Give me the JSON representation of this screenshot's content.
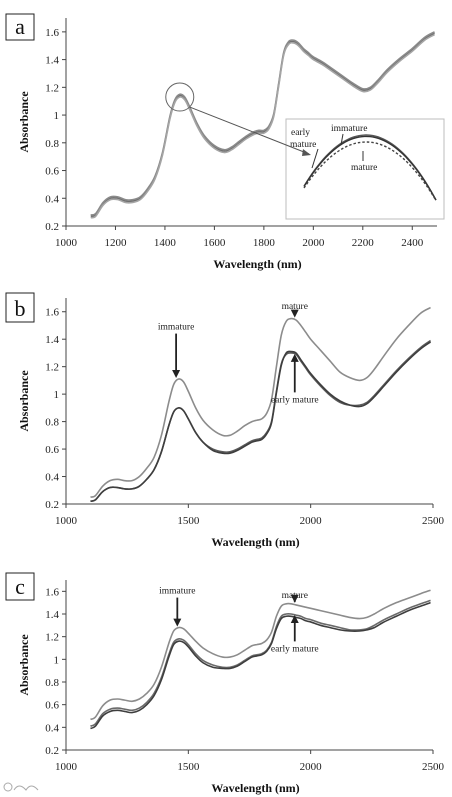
{
  "chart_data": [
    {
      "type": "line",
      "panel_label": "a",
      "xlabel": "Wavelength (nm)",
      "ylabel": "Absorbance",
      "xlim": [
        1000,
        2500
      ],
      "ylim": [
        0.2,
        1.7
      ],
      "xticks": [
        1000,
        1200,
        1400,
        1600,
        1800,
        2000,
        2200,
        2400
      ],
      "yticks": [
        0.2,
        0.4,
        0.6,
        0.8,
        1.0,
        1.2,
        1.4,
        1.6
      ],
      "ytick_labels": [
        "0.2",
        "0.4",
        "0.6",
        "0.8",
        "1",
        "1.2",
        "1.4",
        "1.6"
      ],
      "grid": false,
      "series": [
        {
          "color": "#6f6f6f",
          "x": [
            1100,
            1120,
            1150,
            1180,
            1210,
            1240,
            1270,
            1300,
            1330,
            1360,
            1390,
            1420,
            1440,
            1460,
            1480,
            1500,
            1530,
            1560,
            1600,
            1640,
            1670,
            1700,
            1730,
            1760,
            1780,
            1800,
            1820,
            1840,
            1860,
            1880,
            1900,
            1920,
            1940,
            1960,
            1980,
            2000,
            2040,
            2080,
            2120,
            2160,
            2200,
            2230,
            2260,
            2300,
            2350,
            2400,
            2450,
            2490
          ],
          "y": [
            0.27,
            0.28,
            0.36,
            0.4,
            0.4,
            0.38,
            0.38,
            0.4,
            0.46,
            0.55,
            0.72,
            0.98,
            1.1,
            1.14,
            1.12,
            1.05,
            0.93,
            0.84,
            0.77,
            0.74,
            0.76,
            0.8,
            0.84,
            0.87,
            0.88,
            0.88,
            0.91,
            1.0,
            1.22,
            1.44,
            1.52,
            1.53,
            1.51,
            1.47,
            1.44,
            1.41,
            1.37,
            1.32,
            1.27,
            1.22,
            1.18,
            1.19,
            1.24,
            1.32,
            1.4,
            1.47,
            1.55,
            1.59
          ]
        },
        {
          "color": "#8a8a8a",
          "x": [
            1100,
            1120,
            1150,
            1180,
            1210,
            1240,
            1270,
            1300,
            1330,
            1360,
            1390,
            1420,
            1440,
            1460,
            1480,
            1500,
            1530,
            1560,
            1600,
            1640,
            1670,
            1700,
            1730,
            1760,
            1780,
            1800,
            1820,
            1840,
            1860,
            1880,
            1900,
            1920,
            1940,
            1960,
            1980,
            2000,
            2040,
            2080,
            2120,
            2160,
            2200,
            2230,
            2260,
            2300,
            2350,
            2400,
            2450,
            2490
          ],
          "y": [
            0.28,
            0.29,
            0.37,
            0.41,
            0.41,
            0.39,
            0.39,
            0.41,
            0.47,
            0.56,
            0.73,
            0.99,
            1.11,
            1.15,
            1.13,
            1.06,
            0.94,
            0.85,
            0.78,
            0.75,
            0.77,
            0.81,
            0.85,
            0.88,
            0.89,
            0.89,
            0.92,
            1.01,
            1.23,
            1.45,
            1.53,
            1.54,
            1.52,
            1.48,
            1.45,
            1.42,
            1.38,
            1.33,
            1.28,
            1.23,
            1.19,
            1.2,
            1.25,
            1.33,
            1.41,
            1.48,
            1.56,
            1.6
          ]
        },
        {
          "color": "#a5a5a5",
          "x": [
            1100,
            1120,
            1150,
            1180,
            1210,
            1240,
            1270,
            1300,
            1330,
            1360,
            1390,
            1420,
            1440,
            1460,
            1480,
            1500,
            1530,
            1560,
            1600,
            1640,
            1670,
            1700,
            1730,
            1760,
            1780,
            1800,
            1820,
            1840,
            1860,
            1880,
            1900,
            1920,
            1940,
            1960,
            1980,
            2000,
            2040,
            2080,
            2120,
            2160,
            2200,
            2230,
            2260,
            2300,
            2350,
            2400,
            2450,
            2490
          ],
          "y": [
            0.26,
            0.27,
            0.35,
            0.39,
            0.39,
            0.37,
            0.37,
            0.39,
            0.45,
            0.54,
            0.71,
            0.97,
            1.09,
            1.13,
            1.11,
            1.04,
            0.92,
            0.83,
            0.76,
            0.73,
            0.75,
            0.79,
            0.83,
            0.86,
            0.87,
            0.87,
            0.9,
            0.99,
            1.21,
            1.43,
            1.51,
            1.52,
            1.5,
            1.46,
            1.43,
            1.4,
            1.36,
            1.31,
            1.26,
            1.21,
            1.17,
            1.18,
            1.23,
            1.31,
            1.39,
            1.46,
            1.54,
            1.58
          ]
        }
      ],
      "inset": {
        "labels": [
          "early mature",
          "immature",
          "mature"
        ],
        "curves": [
          {
            "label": "immature",
            "style": "solid",
            "peak": 1.0
          },
          {
            "label": "early mature",
            "style": "solid",
            "peak": 0.98
          },
          {
            "label": "mature",
            "style": "dotted",
            "peak": 0.9
          }
        ],
        "zoom_center": {
          "x": 1460,
          "y": 1.13
        }
      }
    },
    {
      "type": "line",
      "panel_label": "b",
      "xlabel": "Wavelength (nm)",
      "ylabel": "Absorbance",
      "xlim": [
        1000,
        2500
      ],
      "ylim": [
        0.2,
        1.7
      ],
      "xticks": [
        1000,
        1500,
        2000,
        2500
      ],
      "yticks": [
        0.2,
        0.4,
        0.6,
        0.8,
        1.0,
        1.2,
        1.4,
        1.6
      ],
      "ytick_labels": [
        "0.2",
        "0.4",
        "0.6",
        "0.8",
        "1",
        "1.2",
        "1.4",
        "1.6"
      ],
      "grid": false,
      "annotations": [
        {
          "text": "immature",
          "x": 1450,
          "y": 1.11,
          "label_y": 1.47
        },
        {
          "text": "mature",
          "x": 1935,
          "y": 1.55,
          "label_y": 1.62
        },
        {
          "text": "early mature",
          "x": 1935,
          "y": 1.3,
          "label_y": 0.94
        }
      ],
      "series": [
        {
          "color": "#8c8c8c",
          "x": [
            1100,
            1120,
            1150,
            1180,
            1210,
            1240,
            1270,
            1300,
            1330,
            1360,
            1390,
            1420,
            1440,
            1460,
            1480,
            1500,
            1530,
            1560,
            1600,
            1640,
            1670,
            1700,
            1730,
            1760,
            1780,
            1800,
            1820,
            1840,
            1860,
            1880,
            1900,
            1920,
            1940,
            1960,
            1980,
            2000,
            2040,
            2080,
            2120,
            2160,
            2200,
            2230,
            2260,
            2300,
            2350,
            2400,
            2450,
            2490
          ],
          "y": [
            0.25,
            0.26,
            0.33,
            0.37,
            0.38,
            0.37,
            0.37,
            0.4,
            0.46,
            0.54,
            0.7,
            0.94,
            1.07,
            1.11,
            1.09,
            1.02,
            0.9,
            0.81,
            0.74,
            0.7,
            0.7,
            0.73,
            0.77,
            0.8,
            0.81,
            0.82,
            0.86,
            0.96,
            1.2,
            1.43,
            1.53,
            1.55,
            1.54,
            1.5,
            1.45,
            1.4,
            1.32,
            1.24,
            1.16,
            1.12,
            1.1,
            1.12,
            1.18,
            1.28,
            1.4,
            1.5,
            1.59,
            1.63
          ]
        },
        {
          "color": "#5a5a5a",
          "x": [
            1100,
            1120,
            1150,
            1180,
            1210,
            1240,
            1270,
            1300,
            1330,
            1360,
            1390,
            1420,
            1440,
            1460,
            1480,
            1500,
            1530,
            1560,
            1600,
            1640,
            1670,
            1700,
            1730,
            1760,
            1780,
            1800,
            1820,
            1840,
            1860,
            1880,
            1900,
            1920,
            1940,
            1960,
            1980,
            2000,
            2040,
            2080,
            2120,
            2160,
            2200,
            2230,
            2260,
            2300,
            2350,
            2400,
            2450,
            2490
          ],
          "y": [
            0.22,
            0.23,
            0.29,
            0.32,
            0.32,
            0.31,
            0.31,
            0.33,
            0.38,
            0.45,
            0.58,
            0.77,
            0.87,
            0.9,
            0.88,
            0.82,
            0.72,
            0.65,
            0.6,
            0.58,
            0.58,
            0.6,
            0.63,
            0.66,
            0.67,
            0.68,
            0.72,
            0.8,
            1.02,
            1.22,
            1.29,
            1.3,
            1.29,
            1.24,
            1.19,
            1.14,
            1.06,
            0.99,
            0.94,
            0.92,
            0.92,
            0.94,
            0.99,
            1.07,
            1.17,
            1.26,
            1.34,
            1.39
          ]
        },
        {
          "color": "#3e3e3e",
          "x": [
            1100,
            1120,
            1150,
            1180,
            1210,
            1240,
            1270,
            1300,
            1330,
            1360,
            1390,
            1420,
            1440,
            1460,
            1480,
            1500,
            1530,
            1560,
            1600,
            1640,
            1670,
            1700,
            1730,
            1760,
            1780,
            1800,
            1820,
            1840,
            1860,
            1880,
            1900,
            1920,
            1940,
            1960,
            1980,
            2000,
            2040,
            2080,
            2120,
            2160,
            2200,
            2230,
            2260,
            2300,
            2350,
            2400,
            2450,
            2490
          ],
          "y": [
            0.22,
            0.23,
            0.29,
            0.32,
            0.32,
            0.31,
            0.31,
            0.33,
            0.38,
            0.45,
            0.58,
            0.77,
            0.87,
            0.9,
            0.88,
            0.82,
            0.72,
            0.65,
            0.59,
            0.57,
            0.57,
            0.59,
            0.62,
            0.65,
            0.66,
            0.67,
            0.71,
            0.79,
            1.01,
            1.21,
            1.3,
            1.31,
            1.3,
            1.25,
            1.2,
            1.15,
            1.07,
            1.0,
            0.95,
            0.92,
            0.91,
            0.93,
            0.98,
            1.06,
            1.16,
            1.25,
            1.33,
            1.38
          ]
        }
      ]
    },
    {
      "type": "line",
      "panel_label": "c",
      "xlabel": "Wavelength (nm)",
      "ylabel": "Absorbance",
      "xlim": [
        1000,
        2500
      ],
      "ylim": [
        0.2,
        1.7
      ],
      "xticks": [
        1000,
        1500,
        2000,
        2500
      ],
      "yticks": [
        0.2,
        0.4,
        0.6,
        0.8,
        1.0,
        1.2,
        1.4,
        1.6
      ],
      "ytick_labels": [
        "0.2",
        "0.4",
        "0.6",
        "0.8",
        "1",
        "1.2",
        "1.4",
        "1.6"
      ],
      "grid": false,
      "annotations": [
        {
          "text": "immature",
          "x": 1455,
          "y": 1.28,
          "label_y": 1.58
        },
        {
          "text": "mature",
          "x": 1935,
          "y": 1.49,
          "label_y": 1.54
        },
        {
          "text": "early mature",
          "x": 1935,
          "y": 1.4,
          "label_y": 1.07
        }
      ],
      "series": [
        {
          "color": "#8c8c8c",
          "x": [
            1100,
            1120,
            1150,
            1180,
            1210,
            1240,
            1270,
            1300,
            1330,
            1360,
            1390,
            1420,
            1440,
            1460,
            1480,
            1500,
            1530,
            1560,
            1600,
            1640,
            1670,
            1700,
            1730,
            1760,
            1780,
            1800,
            1820,
            1840,
            1860,
            1880,
            1900,
            1920,
            1940,
            1960,
            1980,
            2000,
            2040,
            2080,
            2120,
            2160,
            2200,
            2230,
            2260,
            2300,
            2350,
            2400,
            2450,
            2490
          ],
          "y": [
            0.47,
            0.49,
            0.59,
            0.64,
            0.65,
            0.64,
            0.63,
            0.65,
            0.7,
            0.78,
            0.93,
            1.14,
            1.25,
            1.28,
            1.27,
            1.23,
            1.16,
            1.1,
            1.05,
            1.02,
            1.02,
            1.04,
            1.08,
            1.12,
            1.13,
            1.14,
            1.17,
            1.24,
            1.38,
            1.47,
            1.49,
            1.49,
            1.48,
            1.47,
            1.46,
            1.45,
            1.43,
            1.41,
            1.39,
            1.37,
            1.36,
            1.37,
            1.4,
            1.45,
            1.5,
            1.54,
            1.58,
            1.61
          ]
        },
        {
          "color": "#6a6a6a",
          "x": [
            1100,
            1120,
            1150,
            1180,
            1210,
            1240,
            1270,
            1300,
            1330,
            1360,
            1390,
            1420,
            1440,
            1460,
            1480,
            1500,
            1530,
            1560,
            1600,
            1640,
            1670,
            1700,
            1730,
            1760,
            1780,
            1800,
            1820,
            1840,
            1860,
            1880,
            1900,
            1920,
            1940,
            1960,
            1980,
            2000,
            2040,
            2080,
            2120,
            2160,
            2200,
            2230,
            2260,
            2300,
            2350,
            2400,
            2450,
            2490
          ],
          "y": [
            0.41,
            0.43,
            0.52,
            0.56,
            0.57,
            0.56,
            0.55,
            0.57,
            0.62,
            0.7,
            0.84,
            1.04,
            1.15,
            1.18,
            1.17,
            1.13,
            1.05,
            0.99,
            0.95,
            0.93,
            0.93,
            0.95,
            0.99,
            1.03,
            1.04,
            1.05,
            1.08,
            1.15,
            1.29,
            1.38,
            1.4,
            1.4,
            1.39,
            1.38,
            1.36,
            1.35,
            1.32,
            1.3,
            1.28,
            1.26,
            1.26,
            1.27,
            1.3,
            1.35,
            1.4,
            1.45,
            1.49,
            1.52
          ]
        },
        {
          "color": "#3e3e3e",
          "x": [
            1100,
            1120,
            1150,
            1180,
            1210,
            1240,
            1270,
            1300,
            1330,
            1360,
            1390,
            1420,
            1440,
            1460,
            1480,
            1500,
            1530,
            1560,
            1600,
            1640,
            1670,
            1700,
            1730,
            1760,
            1780,
            1800,
            1820,
            1840,
            1860,
            1880,
            1900,
            1920,
            1940,
            1960,
            1980,
            2000,
            2040,
            2080,
            2120,
            2160,
            2200,
            2230,
            2260,
            2300,
            2350,
            2400,
            2450,
            2490
          ],
          "y": [
            0.39,
            0.41,
            0.5,
            0.54,
            0.55,
            0.54,
            0.53,
            0.55,
            0.6,
            0.68,
            0.82,
            1.02,
            1.13,
            1.16,
            1.15,
            1.11,
            1.03,
            0.97,
            0.93,
            0.92,
            0.92,
            0.94,
            0.98,
            1.02,
            1.03,
            1.04,
            1.07,
            1.14,
            1.27,
            1.36,
            1.38,
            1.38,
            1.37,
            1.36,
            1.34,
            1.33,
            1.3,
            1.28,
            1.26,
            1.25,
            1.25,
            1.26,
            1.28,
            1.33,
            1.38,
            1.43,
            1.47,
            1.5
          ]
        }
      ]
    }
  ]
}
